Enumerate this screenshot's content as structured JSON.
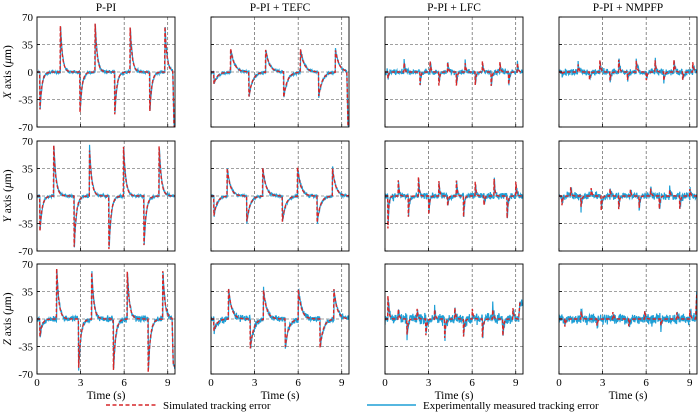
{
  "columns": [
    "P-PI",
    "P-PI + TEFC",
    "P-PI + LFC",
    "P-PI + NMPFP"
  ],
  "row_labels": [
    {
      "prefix": "X",
      "suffix": " axis (",
      "mu": "μ",
      "unit": "m)"
    },
    {
      "prefix": "Y",
      "suffix": " axis (",
      "mu": "μ",
      "unit": "m)"
    },
    {
      "prefix": "Z",
      "suffix": " axis (",
      "mu": "μ",
      "unit": "m)"
    }
  ],
  "x_axis_label": "Time (s)",
  "legend": {
    "simulated": "Simulated tracking error",
    "measured": "Experimentally measured tracking error"
  },
  "colors": {
    "simulated": "#d62728",
    "measured": "#1f9fd6",
    "grid": "#444444"
  },
  "chart_data": {
    "type": "line",
    "layout": "3x4 grid of line subplots",
    "xlim": [
      0,
      9.5
    ],
    "xticks": [
      0,
      3,
      6,
      9
    ],
    "ylim_rows": [
      [
        -70,
        70
      ],
      [
        -70,
        70
      ],
      [
        -70,
        70
      ]
    ],
    "yticks_rows": [
      [
        -70,
        -35,
        0,
        35,
        70
      ],
      [
        -70,
        -35,
        0,
        35,
        70
      ],
      [
        -70,
        -35,
        0,
        35,
        70
      ]
    ],
    "grid": "dashed, on",
    "legend_position": "bottom-center",
    "series": [
      "Simulated tracking error",
      "Experimentally measured tracking error"
    ],
    "panels": [
      {
        "row": "X",
        "column": "P-PI",
        "period": 2.4,
        "events": [
          [
            0.2,
            -48
          ],
          [
            1.6,
            62
          ],
          [
            2.95,
            -55
          ],
          [
            4.0,
            62
          ],
          [
            5.35,
            -55
          ],
          [
            6.4,
            62
          ],
          [
            7.75,
            -55
          ],
          [
            8.8,
            60
          ]
        ],
        "tail": [
          9.35,
          -70
        ],
        "decay": 0.14,
        "noise": 1.5
      },
      {
        "row": "X",
        "column": "P-PI + TEFC",
        "period": 2.4,
        "events": [
          [
            0.2,
            -15
          ],
          [
            1.35,
            30
          ],
          [
            2.6,
            -33
          ],
          [
            3.75,
            30
          ],
          [
            5.0,
            -33
          ],
          [
            6.15,
            30
          ],
          [
            7.4,
            -33
          ],
          [
            8.55,
            30
          ]
        ],
        "tail": [
          9.35,
          -70
        ],
        "decay": 0.25,
        "noise": 1.5
      },
      {
        "row": "X",
        "column": "P-PI + LFC",
        "period": 1.2,
        "events": [
          [
            0.2,
            -8
          ],
          [
            1.3,
            15
          ],
          [
            2.4,
            -20
          ],
          [
            3.1,
            15
          ],
          [
            3.7,
            -20
          ],
          [
            4.3,
            15
          ],
          [
            4.9,
            -22
          ],
          [
            5.5,
            15
          ],
          [
            6.2,
            -20
          ],
          [
            6.7,
            15
          ],
          [
            7.3,
            -20
          ],
          [
            7.9,
            15
          ],
          [
            8.5,
            -20
          ],
          [
            9.1,
            15
          ]
        ],
        "tail": null,
        "decay": 0.06,
        "noise": 2.5
      },
      {
        "row": "X",
        "column": "P-PI + NMPFP",
        "period": 1.2,
        "events": [
          [
            0.2,
            -3
          ],
          [
            1.3,
            12
          ],
          [
            2.1,
            -10
          ],
          [
            2.8,
            18
          ],
          [
            3.5,
            -12
          ],
          [
            4.1,
            18
          ],
          [
            4.7,
            -12
          ],
          [
            5.3,
            18
          ],
          [
            6.0,
            -12
          ],
          [
            6.6,
            18
          ],
          [
            7.2,
            -14
          ],
          [
            7.9,
            18
          ],
          [
            8.5,
            -12
          ],
          [
            9.2,
            14
          ]
        ],
        "tail": null,
        "decay": 0.07,
        "noise": 3
      },
      {
        "row": "Y",
        "column": "P-PI",
        "period": 2.4,
        "events": [
          [
            0.2,
            -45
          ],
          [
            1.15,
            65
          ],
          [
            2.55,
            -68
          ],
          [
            3.6,
            65
          ],
          [
            4.95,
            -68
          ],
          [
            5.95,
            65
          ],
          [
            7.35,
            -68
          ],
          [
            8.4,
            65
          ]
        ],
        "tail": null,
        "decay": 0.15,
        "noise": 1.5
      },
      {
        "row": "Y",
        "column": "P-PI + TEFC",
        "period": 2.4,
        "events": [
          [
            0.2,
            -25
          ],
          [
            1.1,
            38
          ],
          [
            2.45,
            -35
          ],
          [
            3.55,
            38
          ],
          [
            4.9,
            -35
          ],
          [
            5.95,
            38
          ],
          [
            7.3,
            -35
          ],
          [
            8.35,
            38
          ]
        ],
        "tail": null,
        "decay": 0.22,
        "noise": 1.5
      },
      {
        "row": "Y",
        "column": "P-PI + LFC",
        "period": 1.2,
        "events": [
          [
            0.2,
            -42
          ],
          [
            0.9,
            25
          ],
          [
            1.6,
            -30
          ],
          [
            2.3,
            25
          ],
          [
            3.0,
            -30
          ],
          [
            3.7,
            22
          ],
          [
            4.3,
            -15
          ],
          [
            4.9,
            25
          ],
          [
            5.4,
            -30
          ],
          [
            6.2,
            22
          ],
          [
            6.8,
            -15
          ],
          [
            7.5,
            25
          ],
          [
            8.4,
            -30
          ],
          [
            9.0,
            20
          ]
        ],
        "tail": null,
        "decay": 0.06,
        "noise": 3
      },
      {
        "row": "Y",
        "column": "P-PI + NMPFP",
        "period": 1.2,
        "events": [
          [
            0.2,
            -12
          ],
          [
            0.8,
            12
          ],
          [
            1.5,
            -18
          ],
          [
            2.2,
            12
          ],
          [
            2.9,
            -20
          ],
          [
            3.5,
            10
          ],
          [
            4.1,
            -20
          ],
          [
            4.9,
            10
          ],
          [
            5.5,
            -20
          ],
          [
            6.3,
            10
          ],
          [
            6.9,
            -18
          ],
          [
            7.6,
            10
          ],
          [
            8.3,
            -20
          ],
          [
            9.0,
            10
          ]
        ],
        "tail": null,
        "decay": 0.06,
        "noise": 3.5
      },
      {
        "row": "Z",
        "column": "P-PI",
        "period": 2.4,
        "events": [
          [
            0.2,
            -22
          ],
          [
            1.35,
            65
          ],
          [
            2.85,
            -70
          ],
          [
            3.75,
            65
          ],
          [
            5.25,
            -70
          ],
          [
            6.2,
            65
          ],
          [
            7.65,
            -70
          ],
          [
            8.65,
            65
          ]
        ],
        "tail": [
          9.3,
          -60
        ],
        "decay": 0.15,
        "noise": 3
      },
      {
        "row": "Z",
        "column": "P-PI + TEFC",
        "period": 2.4,
        "events": [
          [
            0.2,
            -15
          ],
          [
            1.2,
            40
          ],
          [
            2.7,
            -38
          ],
          [
            3.6,
            40
          ],
          [
            5.1,
            -38
          ],
          [
            6.0,
            40
          ],
          [
            7.5,
            -38
          ],
          [
            8.45,
            40
          ]
        ],
        "tail": null,
        "decay": 0.22,
        "noise": 3
      },
      {
        "row": "Z",
        "column": "P-PI + LFC",
        "period": 1.2,
        "events": [
          [
            0.2,
            30
          ],
          [
            0.9,
            15
          ],
          [
            1.5,
            -25
          ],
          [
            2.2,
            15
          ],
          [
            2.8,
            -25
          ],
          [
            3.4,
            15
          ],
          [
            4.1,
            -28
          ],
          [
            4.8,
            15
          ],
          [
            5.4,
            -25
          ],
          [
            6.0,
            15
          ],
          [
            6.7,
            -25
          ],
          [
            7.4,
            15
          ],
          [
            8.1,
            -25
          ],
          [
            8.8,
            15
          ]
        ],
        "tail": [
          9.2,
          20
        ],
        "decay": 0.07,
        "noise": 5
      },
      {
        "row": "Z",
        "column": "P-PI + NMPFP",
        "period": 1.2,
        "events": [
          [
            0.4,
            -10
          ],
          [
            1.5,
            12
          ],
          [
            2.6,
            -10
          ],
          [
            3.7,
            10
          ],
          [
            4.8,
            -10
          ],
          [
            5.9,
            10
          ],
          [
            7.0,
            -10
          ],
          [
            8.1,
            10
          ],
          [
            9.0,
            12
          ]
        ],
        "tail": [
          9.4,
          30
        ],
        "decay": 0.07,
        "noise": 5
      }
    ]
  }
}
